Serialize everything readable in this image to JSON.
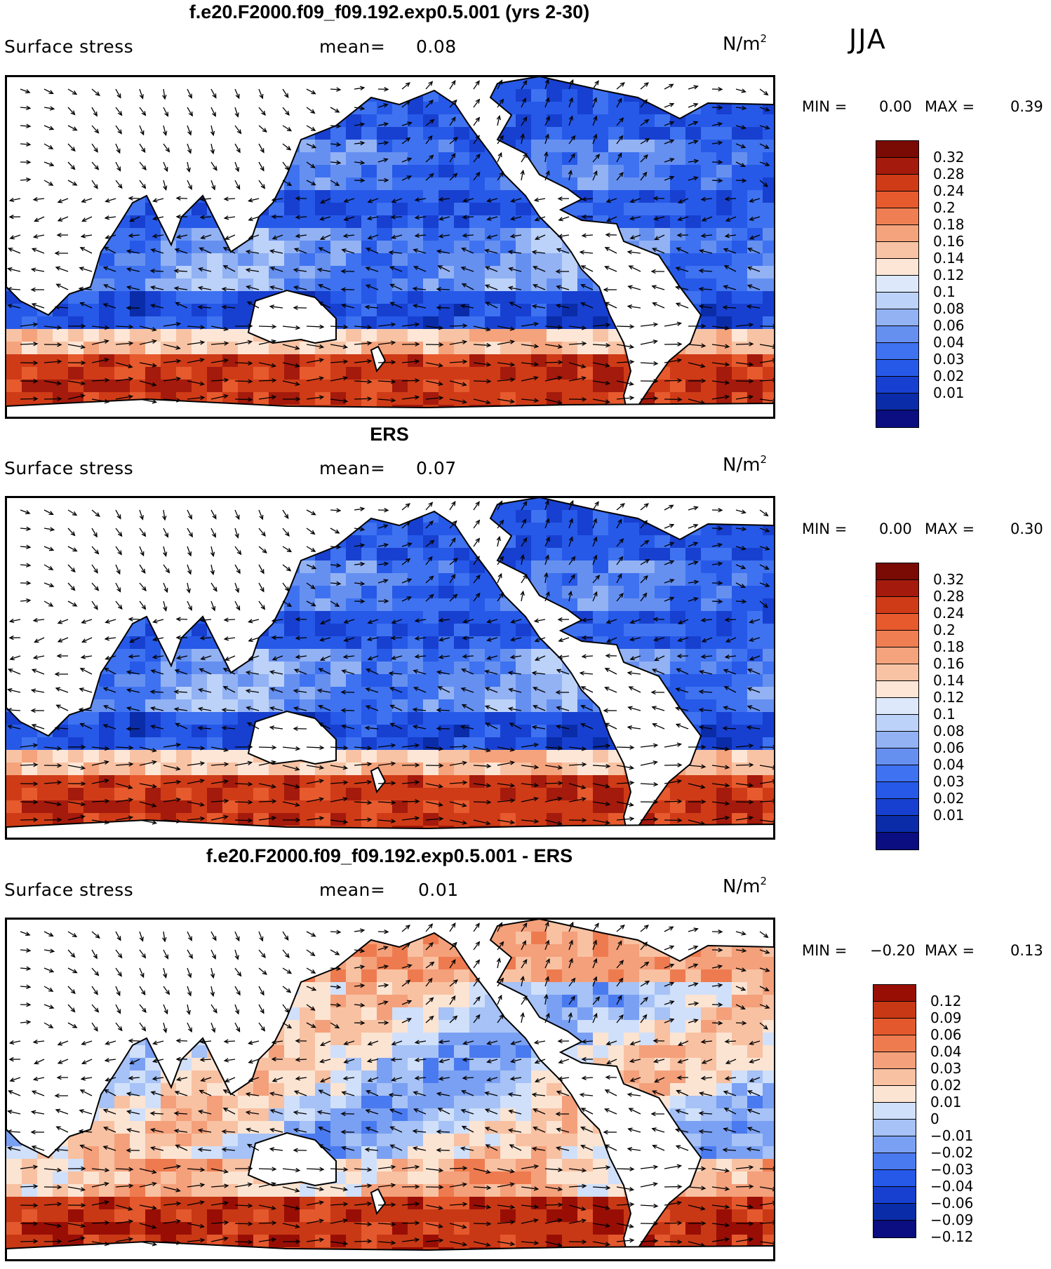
{
  "season": "JJA",
  "colors": {
    "stress": [
      "#0a0e80",
      "#0a2ca8",
      "#1740d0",
      "#2659e8",
      "#3e72f0",
      "#6690f0",
      "#92b2f4",
      "#bcd2f8",
      "#dde8fb",
      "#fde6d6",
      "#f8c3a4",
      "#f5a37c",
      "#ef7f52",
      "#e65a2e",
      "#cf3b17",
      "#a41a0c",
      "#7a0a04"
    ],
    "diff": [
      "#0a0e80",
      "#0a2ca8",
      "#1740d0",
      "#2659e8",
      "#4a7af0",
      "#7aa0f3",
      "#a6c2f6",
      "#d0e0fa",
      "#fce4d2",
      "#f8c1a2",
      "#f4a07b",
      "#ee7b4f",
      "#e4582d",
      "#c83815",
      "#980e05"
    ],
    "coast": "#000000",
    "arrow": "#000000"
  },
  "panels": [
    {
      "title": "f.e20.F2000.f09_f09.192.exp0.5.001 (yrs 2-30)",
      "variable": "Surface stress",
      "mean_label": "mean=",
      "mean_value": "0.08",
      "units": "N/m",
      "units_exp": "2",
      "min_label": "MIN =",
      "min_value": "0.00",
      "max_label": "MAX =",
      "max_value": "0.39",
      "kind": "stress",
      "colorbar_labels": [
        "0.32",
        "0.28",
        "0.24",
        "0.2",
        "0.18",
        "0.16",
        "0.14",
        "0.12",
        "0.1",
        "0.08",
        "0.06",
        "0.04",
        "0.03",
        "0.02",
        "0.01"
      ]
    },
    {
      "title": "ERS",
      "variable": "Surface stress",
      "mean_label": "mean=",
      "mean_value": "0.07",
      "units": "N/m",
      "units_exp": "2",
      "min_label": "MIN =",
      "min_value": "0.00",
      "max_label": "MAX =",
      "max_value": "0.30",
      "kind": "stress",
      "colorbar_labels": [
        "0.32",
        "0.28",
        "0.24",
        "0.2",
        "0.18",
        "0.16",
        "0.14",
        "0.12",
        "0.1",
        "0.08",
        "0.06",
        "0.04",
        "0.03",
        "0.02",
        "0.01"
      ]
    },
    {
      "title": "f.e20.F2000.f09_f09.192.exp0.5.001 - ERS",
      "variable": "Surface stress",
      "mean_label": "mean=",
      "mean_value": "0.01",
      "units": "N/m",
      "units_exp": "2",
      "min_label": "MIN =",
      "min_value": "−0.20",
      "max_label": "MAX =",
      "max_value": "0.13",
      "kind": "diff",
      "colorbar_labels": [
        "0.12",
        "0.09",
        "0.06",
        "0.04",
        "0.03",
        "0.02",
        "0.01",
        "0",
        "−0.01",
        "−0.02",
        "−0.03",
        "−0.04",
        "−0.06",
        "−0.09",
        "−0.12"
      ]
    }
  ]
}
